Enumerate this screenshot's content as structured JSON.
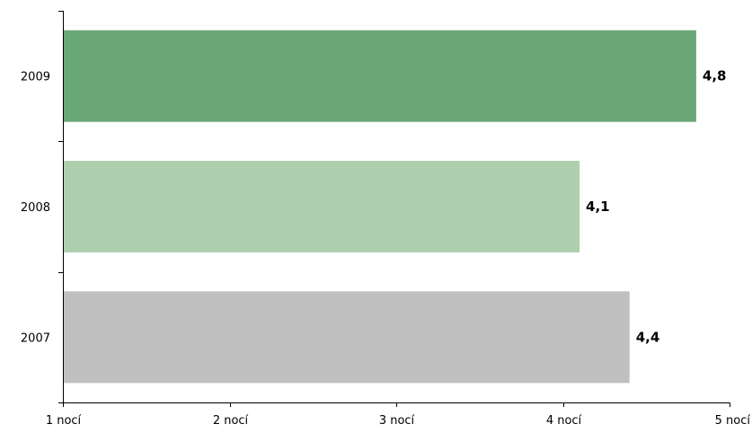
{
  "chart_data": {
    "type": "bar",
    "orientation": "horizontal",
    "categories": [
      "2009",
      "2008",
      "2007"
    ],
    "values": [
      4.8,
      4.1,
      4.4
    ],
    "value_labels": [
      "4,8",
      "4,1",
      "4,4"
    ],
    "bar_colors": [
      "#69a777",
      "#adcfae",
      "#c0c0c0"
    ],
    "xlim": [
      1,
      5
    ],
    "x_ticks": [
      1,
      2,
      3,
      4,
      5
    ],
    "x_tick_labels": [
      "1 nocí",
      "2 nocí",
      "3 nocí",
      "4 nocí",
      "5 nocí"
    ],
    "title": "",
    "xlabel": "",
    "ylabel": "",
    "grid": false,
    "legend": "none"
  }
}
